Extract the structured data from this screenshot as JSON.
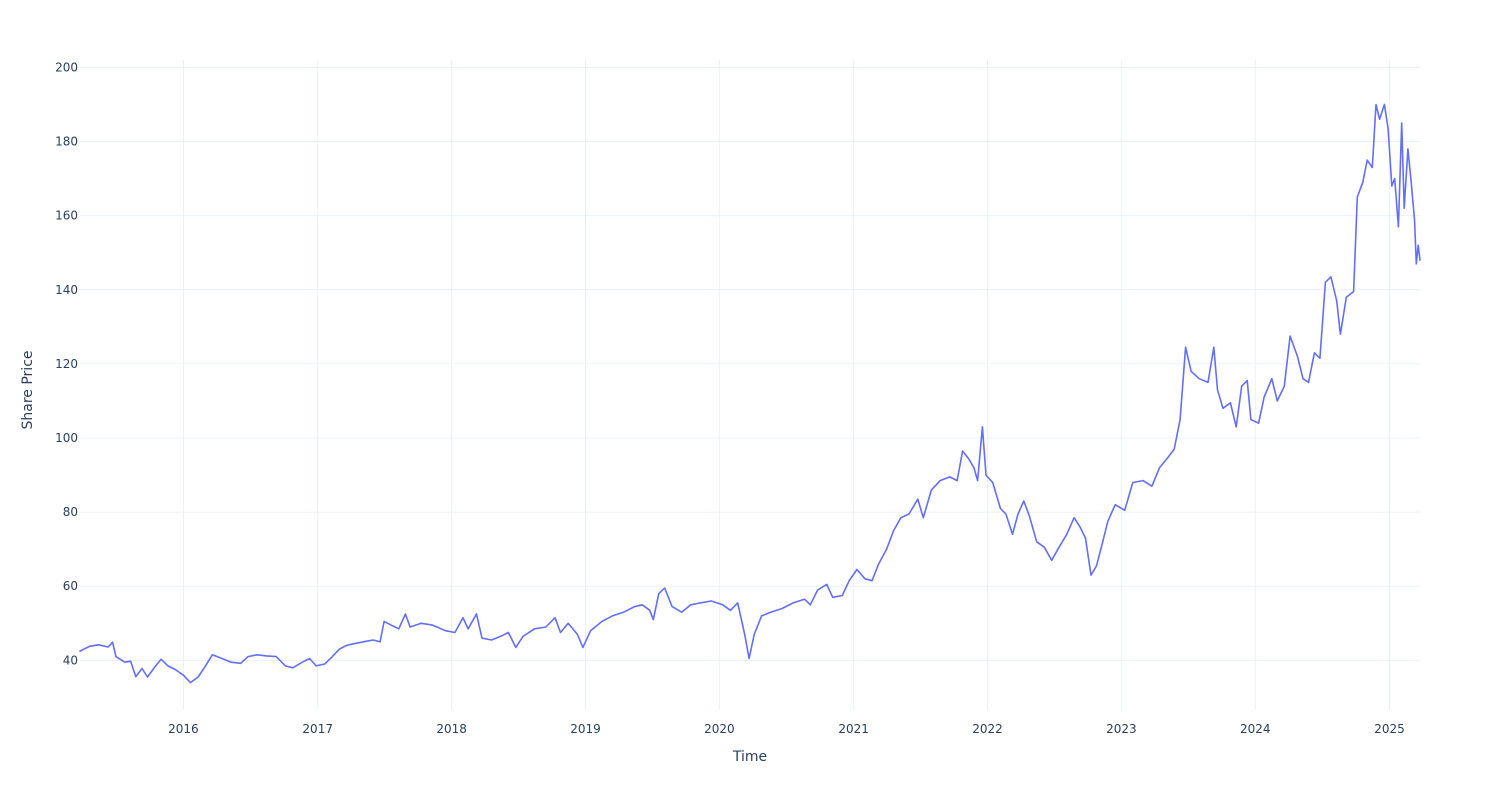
{
  "chart_data": {
    "type": "line",
    "title": "",
    "xlabel": "Time",
    "ylabel": "Share Price",
    "x_ticks": [
      "2016",
      "2017",
      "2018",
      "2019",
      "2020",
      "2021",
      "2022",
      "2023",
      "2024",
      "2025"
    ],
    "y_ticks": [
      40,
      60,
      80,
      100,
      120,
      140,
      160,
      180,
      200
    ],
    "xlim": [
      "2015-03-25",
      "2025-03-25"
    ],
    "ylim": [
      26.6,
      202
    ],
    "grid": true,
    "legend": "none",
    "series": [
      {
        "color": "#636efa",
        "points": [
          [
            "2015-03-25",
            42.5
          ],
          [
            "2015-04-20",
            43.8
          ],
          [
            "2015-05-15",
            44.2
          ],
          [
            "2015-06-10",
            43.6
          ],
          [
            "2015-06-22",
            44.9
          ],
          [
            "2015-07-01",
            41.0
          ],
          [
            "2015-07-25",
            39.5
          ],
          [
            "2015-08-10",
            39.8
          ],
          [
            "2015-08-24",
            35.6
          ],
          [
            "2015-09-10",
            37.8
          ],
          [
            "2015-09-25",
            35.5
          ],
          [
            "2015-10-15",
            38.2
          ],
          [
            "2015-11-01",
            40.3
          ],
          [
            "2015-11-20",
            38.5
          ],
          [
            "2015-12-10",
            37.5
          ],
          [
            "2016-01-01",
            36.0
          ],
          [
            "2016-01-20",
            34.0
          ],
          [
            "2016-02-10",
            35.5
          ],
          [
            "2016-03-01",
            38.5
          ],
          [
            "2016-03-20",
            41.5
          ],
          [
            "2016-04-15",
            40.5
          ],
          [
            "2016-05-10",
            39.5
          ],
          [
            "2016-06-05",
            39.2
          ],
          [
            "2016-06-25",
            41.0
          ],
          [
            "2016-07-20",
            41.5
          ],
          [
            "2016-08-15",
            41.2
          ],
          [
            "2016-09-10",
            41.0
          ],
          [
            "2016-10-05",
            38.5
          ],
          [
            "2016-10-25",
            38.0
          ],
          [
            "2016-11-20",
            39.5
          ],
          [
            "2016-12-10",
            40.5
          ],
          [
            "2016-12-28",
            38.5
          ],
          [
            "2017-01-20",
            39.0
          ],
          [
            "2017-02-10",
            41.0
          ],
          [
            "2017-03-01",
            43.0
          ],
          [
            "2017-03-20",
            44.0
          ],
          [
            "2017-04-10",
            44.5
          ],
          [
            "2017-05-05",
            45.0
          ],
          [
            "2017-06-01",
            45.5
          ],
          [
            "2017-06-20",
            45.0
          ],
          [
            "2017-07-01",
            50.5
          ],
          [
            "2017-07-20",
            49.5
          ],
          [
            "2017-08-10",
            48.5
          ],
          [
            "2017-08-28",
            52.5
          ],
          [
            "2017-09-10",
            49.0
          ],
          [
            "2017-10-10",
            50.0
          ],
          [
            "2017-11-10",
            49.5
          ],
          [
            "2017-12-15",
            48.0
          ],
          [
            "2018-01-10",
            47.5
          ],
          [
            "2018-02-01",
            51.5
          ],
          [
            "2018-02-15",
            48.5
          ],
          [
            "2018-03-10",
            52.5
          ],
          [
            "2018-03-25",
            46.0
          ],
          [
            "2018-04-20",
            45.5
          ],
          [
            "2018-05-15",
            46.5
          ],
          [
            "2018-06-05",
            47.5
          ],
          [
            "2018-06-25",
            43.5
          ],
          [
            "2018-07-15",
            46.5
          ],
          [
            "2018-08-15",
            48.5
          ],
          [
            "2018-09-15",
            49.0
          ],
          [
            "2018-10-10",
            51.5
          ],
          [
            "2018-10-25",
            47.5
          ],
          [
            "2018-11-15",
            50.0
          ],
          [
            "2018-12-10",
            47.0
          ],
          [
            "2018-12-25",
            43.5
          ],
          [
            "2019-01-15",
            48.0
          ],
          [
            "2019-02-15",
            50.5
          ],
          [
            "2019-03-15",
            52.0
          ],
          [
            "2019-04-15",
            53.0
          ],
          [
            "2019-05-15",
            54.5
          ],
          [
            "2019-06-05",
            55.0
          ],
          [
            "2019-06-25",
            53.5
          ],
          [
            "2019-07-05",
            51.0
          ],
          [
            "2019-07-20",
            58.0
          ],
          [
            "2019-08-05",
            59.5
          ],
          [
            "2019-08-25",
            54.5
          ],
          [
            "2019-09-20",
            53.0
          ],
          [
            "2019-10-15",
            55.0
          ],
          [
            "2019-11-10",
            55.5
          ],
          [
            "2019-12-10",
            56.0
          ],
          [
            "2020-01-10",
            55.0
          ],
          [
            "2020-01-31",
            53.5
          ],
          [
            "2020-02-20",
            55.5
          ],
          [
            "2020-03-10",
            47.0
          ],
          [
            "2020-03-22",
            40.5
          ],
          [
            "2020-04-05",
            47.0
          ],
          [
            "2020-04-25",
            52.0
          ],
          [
            "2020-05-20",
            53.0
          ],
          [
            "2020-06-20",
            54.0
          ],
          [
            "2020-07-20",
            55.5
          ],
          [
            "2020-08-20",
            56.5
          ],
          [
            "2020-09-05",
            55.0
          ],
          [
            "2020-09-25",
            59.0
          ],
          [
            "2020-10-20",
            60.5
          ],
          [
            "2020-11-05",
            57.0
          ],
          [
            "2020-12-01",
            57.5
          ],
          [
            "2020-12-20",
            61.5
          ],
          [
            "2021-01-10",
            64.5
          ],
          [
            "2021-02-01",
            62.0
          ],
          [
            "2021-02-20",
            61.5
          ],
          [
            "2021-03-10",
            66.0
          ],
          [
            "2021-04-01",
            70.0
          ],
          [
            "2021-04-20",
            75.0
          ],
          [
            "2021-05-10",
            78.5
          ],
          [
            "2021-06-01",
            79.5
          ],
          [
            "2021-06-25",
            83.5
          ],
          [
            "2021-07-10",
            78.5
          ],
          [
            "2021-08-01",
            86.0
          ],
          [
            "2021-08-25",
            88.5
          ],
          [
            "2021-09-20",
            89.5
          ],
          [
            "2021-10-10",
            88.5
          ],
          [
            "2021-10-25",
            96.5
          ],
          [
            "2021-11-10",
            94.5
          ],
          [
            "2021-11-25",
            92.0
          ],
          [
            "2021-12-05",
            88.5
          ],
          [
            "2021-12-18",
            103.0
          ],
          [
            "2021-12-28",
            90.0
          ],
          [
            "2022-01-15",
            88.0
          ],
          [
            "2022-02-05",
            81.0
          ],
          [
            "2022-02-20",
            79.5
          ],
          [
            "2022-03-10",
            74.0
          ],
          [
            "2022-03-25",
            79.5
          ],
          [
            "2022-04-10",
            83.0
          ],
          [
            "2022-04-25",
            79.0
          ],
          [
            "2022-05-15",
            72.0
          ],
          [
            "2022-06-05",
            70.5
          ],
          [
            "2022-06-25",
            67.0
          ],
          [
            "2022-07-15",
            70.5
          ],
          [
            "2022-08-05",
            74.0
          ],
          [
            "2022-08-25",
            78.5
          ],
          [
            "2022-09-10",
            76.0
          ],
          [
            "2022-09-25",
            73.0
          ],
          [
            "2022-10-10",
            63.0
          ],
          [
            "2022-10-25",
            65.5
          ],
          [
            "2022-11-10",
            71.5
          ],
          [
            "2022-11-25",
            77.5
          ],
          [
            "2022-12-15",
            82.0
          ],
          [
            "2023-01-10",
            80.5
          ],
          [
            "2023-02-01",
            88.0
          ],
          [
            "2023-03-01",
            88.5
          ],
          [
            "2023-03-25",
            87.0
          ],
          [
            "2023-04-15",
            92.0
          ],
          [
            "2023-05-10",
            95.0
          ],
          [
            "2023-05-25",
            97.0
          ],
          [
            "2023-06-10",
            105.0
          ],
          [
            "2023-06-25",
            124.5
          ],
          [
            "2023-07-10",
            118.0
          ],
          [
            "2023-08-01",
            116.0
          ],
          [
            "2023-08-25",
            115.0
          ],
          [
            "2023-09-10",
            124.5
          ],
          [
            "2023-09-20",
            113.0
          ],
          [
            "2023-10-05",
            108.0
          ],
          [
            "2023-10-25",
            109.5
          ],
          [
            "2023-11-10",
            103.0
          ],
          [
            "2023-11-25",
            114.0
          ],
          [
            "2023-12-10",
            115.5
          ],
          [
            "2023-12-20",
            105.0
          ],
          [
            "2024-01-10",
            104.0
          ],
          [
            "2024-01-25",
            111.0
          ],
          [
            "2024-02-15",
            116.0
          ],
          [
            "2024-03-01",
            110.0
          ],
          [
            "2024-03-20",
            114.0
          ],
          [
            "2024-04-05",
            127.5
          ],
          [
            "2024-04-25",
            122.0
          ],
          [
            "2024-05-10",
            116.0
          ],
          [
            "2024-05-25",
            115.0
          ],
          [
            "2024-06-10",
            123.0
          ],
          [
            "2024-06-25",
            121.5
          ],
          [
            "2024-07-10",
            142.0
          ],
          [
            "2024-07-25",
            143.5
          ],
          [
            "2024-08-10",
            137.0
          ],
          [
            "2024-08-20",
            128.0
          ],
          [
            "2024-09-05",
            138.0
          ],
          [
            "2024-09-25",
            139.5
          ],
          [
            "2024-10-05",
            165.0
          ],
          [
            "2024-10-20",
            169.0
          ],
          [
            "2024-11-01",
            175.0
          ],
          [
            "2024-11-15",
            173.0
          ],
          [
            "2024-11-25",
            190.0
          ],
          [
            "2024-12-05",
            186.0
          ],
          [
            "2024-12-18",
            190.0
          ],
          [
            "2024-12-28",
            183.5
          ],
          [
            "2025-01-07",
            168.0
          ],
          [
            "2025-01-15",
            170.0
          ],
          [
            "2025-01-25",
            157.0
          ],
          [
            "2025-02-03",
            185.0
          ],
          [
            "2025-02-10",
            162.0
          ],
          [
            "2025-02-20",
            178.0
          ],
          [
            "2025-03-01",
            169.0
          ],
          [
            "2025-03-10",
            159.0
          ],
          [
            "2025-03-15",
            147.0
          ],
          [
            "2025-03-20",
            152.0
          ],
          [
            "2025-03-25",
            148.0
          ]
        ]
      }
    ]
  }
}
